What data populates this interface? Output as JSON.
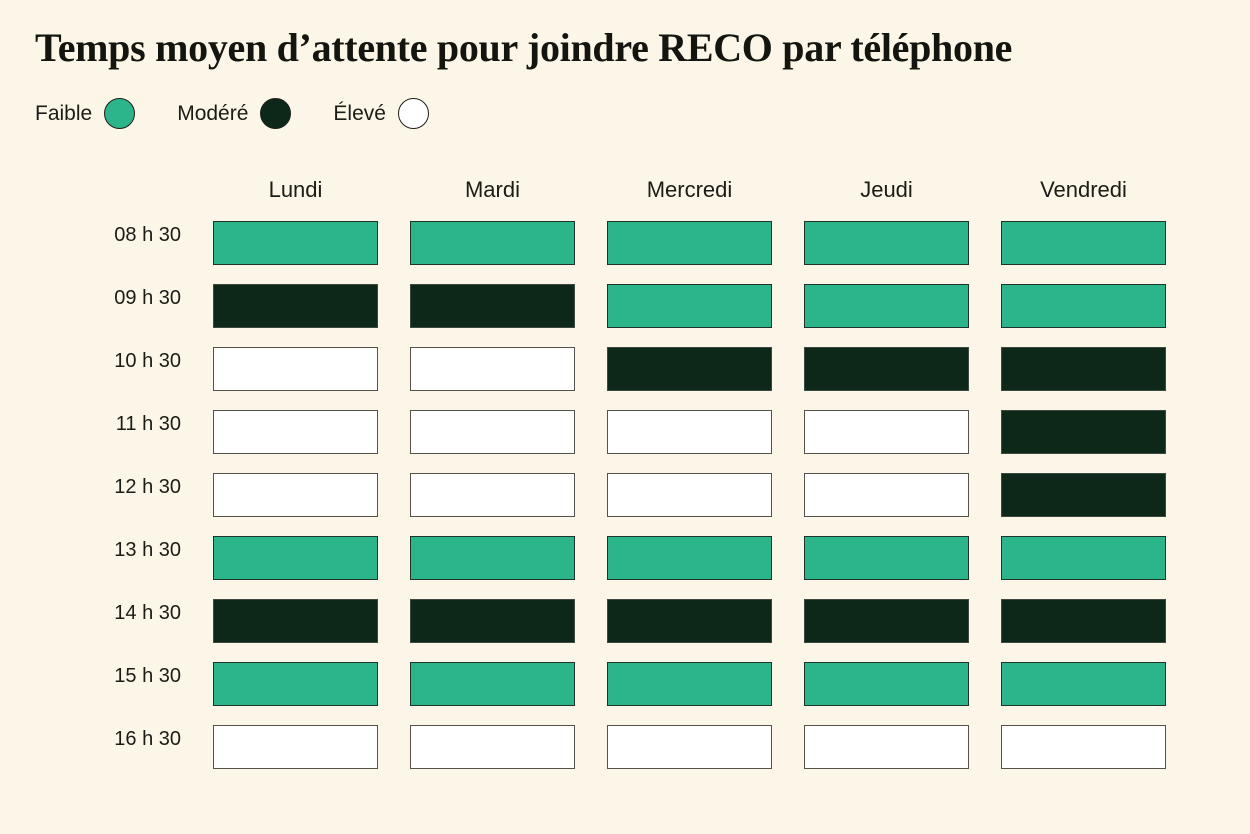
{
  "title": "Temps moyen d’attente pour joindre RECO par téléphone",
  "legend": [
    {
      "label": "Faible",
      "key": "faible"
    },
    {
      "label": "Modéré",
      "key": "modere"
    },
    {
      "label": "Élevé",
      "key": "eleve"
    }
  ],
  "colors": {
    "background": "#FBF6E7",
    "faible": "#2CB58A",
    "modere": "#0D2818",
    "eleve": "#FFFFFF",
    "text": "#1C1C17",
    "cell_border": "#54504A"
  },
  "chart_data": {
    "type": "heatmap",
    "title": "Temps moyen d’attente pour joindre RECO par téléphone",
    "legend_position": "top-left",
    "levels": [
      {
        "key": "faible",
        "label": "Faible"
      },
      {
        "key": "modere",
        "label": "Modéré"
      },
      {
        "key": "eleve",
        "label": "Élevé"
      }
    ],
    "columns": [
      "Lundi",
      "Mardi",
      "Mercredi",
      "Jeudi",
      "Vendredi"
    ],
    "rows": [
      "08 h 30",
      "09 h 30",
      "10 h 30",
      "11 h 30",
      "12 h 30",
      "13 h 30",
      "14 h 30",
      "15 h 30",
      "16 h 30"
    ],
    "values": [
      [
        "faible",
        "faible",
        "faible",
        "faible",
        "faible"
      ],
      [
        "modere",
        "modere",
        "faible",
        "faible",
        "faible"
      ],
      [
        "eleve",
        "eleve",
        "modere",
        "modere",
        "modere"
      ],
      [
        "eleve",
        "eleve",
        "eleve",
        "eleve",
        "modere"
      ],
      [
        "eleve",
        "eleve",
        "eleve",
        "eleve",
        "modere"
      ],
      [
        "faible",
        "faible",
        "faible",
        "faible",
        "faible"
      ],
      [
        "modere",
        "modere",
        "modere",
        "modere",
        "modere"
      ],
      [
        "faible",
        "faible",
        "faible",
        "faible",
        "faible"
      ],
      [
        "eleve",
        "eleve",
        "eleve",
        "eleve",
        "eleve"
      ]
    ]
  }
}
